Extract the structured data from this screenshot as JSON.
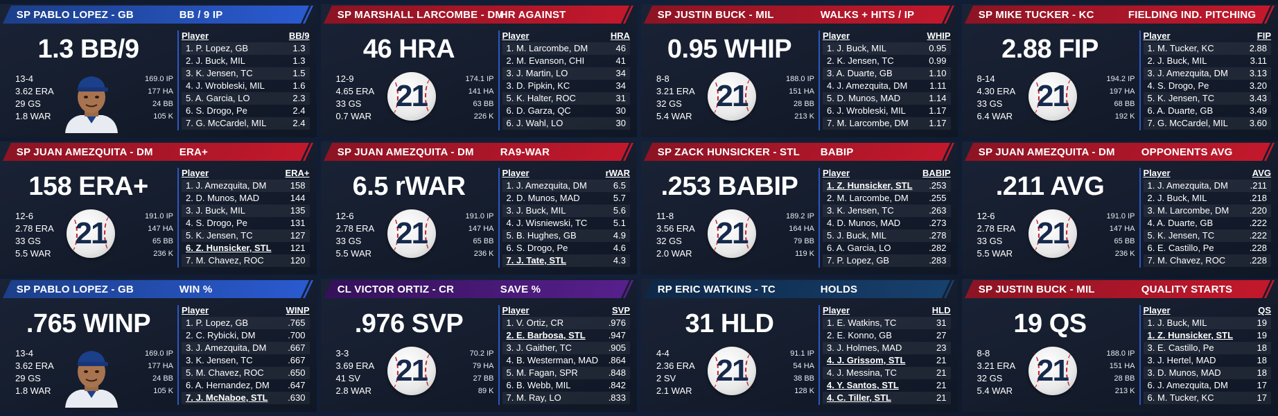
{
  "cards": [
    {
      "color": "blue",
      "player": "SP PABLO LOPEZ - GB",
      "category": "BB / 9 IP",
      "big": "1.3 BB/9",
      "lines": [
        "13-4",
        "3.62 ERA",
        "29 GS",
        "1.8 WAR"
      ],
      "mid": [
        "169.0 IP",
        "177 HA",
        "24 BB",
        "105 K"
      ],
      "logo": "avatar",
      "col": "BB/9",
      "rows": [
        [
          "1. P. Lopez, GB",
          "1.3"
        ],
        [
          "2. J. Buck, MIL",
          "1.3"
        ],
        [
          "3. K. Jensen, TC",
          "1.5"
        ],
        [
          "4. J. Wrobleski, MIL",
          "1.6"
        ],
        [
          "5. A. Garcia, LO",
          "2.3"
        ],
        [
          "6. S. Drogo, Pe",
          "2.4"
        ],
        [
          "7. G. McCardel, MIL",
          "2.4"
        ]
      ]
    },
    {
      "color": "red",
      "player": "SP MARSHALL LARCOMBE - DM",
      "category": "HR AGAINST",
      "big": "46 HRA",
      "lines": [
        "12-9",
        "4.65 ERA",
        "33 GS",
        "0.7 WAR"
      ],
      "mid": [
        "174.1 IP",
        "141 HA",
        "63 BB",
        "226 K"
      ],
      "logo": "21",
      "col": "HRA",
      "rows": [
        [
          "1. M. Larcombe, DM",
          "46"
        ],
        [
          "2. M. Evanson, CHI",
          "41"
        ],
        [
          "3. J. Martin, LO",
          "34"
        ],
        [
          "3. D. Pipkin, KC",
          "34"
        ],
        [
          "5. K. Halter, ROC",
          "31"
        ],
        [
          "6. D. Garza, QC",
          "30"
        ],
        [
          "6. J. Wahl, LO",
          "30"
        ]
      ]
    },
    {
      "color": "red",
      "player": "SP JUSTIN BUCK - MIL",
      "category": "WALKS + HITS / IP",
      "big": "0.95 WHIP",
      "lines": [
        "8-8",
        "3.21 ERA",
        "32 GS",
        "5.4 WAR"
      ],
      "mid": [
        "188.0 IP",
        "151 HA",
        "28 BB",
        "213 K"
      ],
      "logo": "21",
      "col": "WHIP",
      "rows": [
        [
          "1. J. Buck, MIL",
          "0.95"
        ],
        [
          "2. K. Jensen, TC",
          "0.99"
        ],
        [
          "3. A. Duarte, GB",
          "1.10"
        ],
        [
          "4. J. Amezquita, DM",
          "1.11"
        ],
        [
          "5. D. Munos, MAD",
          "1.14"
        ],
        [
          "6. J. Wrobleski, MIL",
          "1.17"
        ],
        [
          "7. M. Larcombe, DM",
          "1.17"
        ]
      ]
    },
    {
      "color": "red",
      "player": "SP MIKE TUCKER - KC",
      "category": "FIELDING IND. PITCHING",
      "big": "2.88 FIP",
      "lines": [
        "8-14",
        "4.30 ERA",
        "33 GS",
        "6.4 WAR"
      ],
      "mid": [
        "194.2 IP",
        "197 HA",
        "68 BB",
        "192 K"
      ],
      "logo": "21",
      "col": "FIP",
      "rows": [
        [
          "1. M. Tucker, KC",
          "2.88"
        ],
        [
          "2. J. Buck, MIL",
          "3.11"
        ],
        [
          "3. J. Amezquita, DM",
          "3.13"
        ],
        [
          "4. S. Drogo, Pe",
          "3.20"
        ],
        [
          "5. K. Jensen, TC",
          "3.43"
        ],
        [
          "6. A. Duarte, GB",
          "3.49"
        ],
        [
          "7. G. McCardel, MIL",
          "3.60"
        ]
      ]
    },
    {
      "color": "red",
      "player": "SP JUAN AMEZQUITA - DM",
      "category": "ERA+",
      "big": "158 ERA+",
      "lines": [
        "12-6",
        "2.78 ERA",
        "33 GS",
        "5.5 WAR"
      ],
      "mid": [
        "191.0 IP",
        "147 HA",
        "65 BB",
        "236 K"
      ],
      "logo": "21",
      "col": "ERA+",
      "rows": [
        [
          "1. J. Amezquita, DM",
          "158"
        ],
        [
          "2. D. Munos, MAD",
          "144"
        ],
        [
          "3. J. Buck, MIL",
          "135"
        ],
        [
          "4. S. Drogo, Pe",
          "131"
        ],
        [
          "5. K. Jensen, TC",
          "127"
        ],
        [
          "6. Z. Hunsicker, STL",
          "121",
          "u"
        ],
        [
          "7. M. Chavez, ROC",
          "120"
        ]
      ]
    },
    {
      "color": "red",
      "player": "SP JUAN AMEZQUITA - DM",
      "category": "RA9-WAR",
      "big": "6.5 rWAR",
      "lines": [
        "12-6",
        "2.78 ERA",
        "33 GS",
        "5.5 WAR"
      ],
      "mid": [
        "191.0 IP",
        "147 HA",
        "65 BB",
        "236 K"
      ],
      "logo": "21",
      "col": "rWAR",
      "rows": [
        [
          "1. J. Amezquita, DM",
          "6.5"
        ],
        [
          "2. D. Munos, MAD",
          "5.7"
        ],
        [
          "3. J. Buck, MIL",
          "5.6"
        ],
        [
          "4. J. Wisniewski, TC",
          "5.1"
        ],
        [
          "5. B. Hughes, GB",
          "4.9"
        ],
        [
          "6. S. Drogo, Pe",
          "4.6"
        ],
        [
          "7. J. Tate, STL",
          "4.3",
          "u"
        ]
      ]
    },
    {
      "color": "red",
      "player": "SP ZACK HUNSICKER - STL",
      "category": "BABIP",
      "big": ".253 BABIP",
      "lines": [
        "11-8",
        "3.56 ERA",
        "32 GS",
        "2.0 WAR"
      ],
      "mid": [
        "189.2 IP",
        "164 HA",
        "79 BB",
        "119 K"
      ],
      "logo": "21",
      "col": "BABIP",
      "rows": [
        [
          "1. Z. Hunsicker, STL",
          ".253",
          "u"
        ],
        [
          "2. M. Larcombe, DM",
          ".255"
        ],
        [
          "3. K. Jensen, TC",
          ".263"
        ],
        [
          "4. D. Munos, MAD",
          ".273"
        ],
        [
          "5. J. Buck, MIL",
          ".278"
        ],
        [
          "6. A. Garcia, LO",
          ".282"
        ],
        [
          "7. P. Lopez, GB",
          ".283"
        ]
      ]
    },
    {
      "color": "red",
      "player": "SP JUAN AMEZQUITA - DM",
      "category": "OPPONENTS AVG",
      "big": ".211 AVG",
      "lines": [
        "12-6",
        "2.78 ERA",
        "33 GS",
        "5.5 WAR"
      ],
      "mid": [
        "191.0 IP",
        "147 HA",
        "65 BB",
        "236 K"
      ],
      "logo": "21",
      "col": "AVG",
      "rows": [
        [
          "1. J. Amezquita, DM",
          ".211"
        ],
        [
          "2. J. Buck, MIL",
          ".218"
        ],
        [
          "3. M. Larcombe, DM",
          ".220"
        ],
        [
          "4. A. Duarte, GB",
          ".222"
        ],
        [
          "5. K. Jensen, TC",
          ".222"
        ],
        [
          "6. E. Castillo, Pe",
          ".228"
        ],
        [
          "7. M. Chavez, ROC",
          ".228"
        ]
      ]
    },
    {
      "color": "blue",
      "player": "SP PABLO LOPEZ - GB",
      "category": "WIN %",
      "big": ".765 WINP",
      "lines": [
        "13-4",
        "3.62 ERA",
        "29 GS",
        "1.8 WAR"
      ],
      "mid": [
        "169.0 IP",
        "177 HA",
        "24 BB",
        "105 K"
      ],
      "logo": "avatar",
      "col": "WINP",
      "rows": [
        [
          "1. P. Lopez, GB",
          ".765"
        ],
        [
          "2. C. Rybicki, DM",
          ".700"
        ],
        [
          "3. J. Amezquita, DM",
          ".667"
        ],
        [
          "3. K. Jensen, TC",
          ".667"
        ],
        [
          "5. M. Chavez, ROC",
          ".650"
        ],
        [
          "6. A. Hernandez, DM",
          ".647"
        ],
        [
          "7. J. McNaboe, STL",
          ".630",
          "u"
        ]
      ]
    },
    {
      "color": "purple",
      "player": "CL VICTOR ORTIZ - CR",
      "category": "SAVE %",
      "big": ".976 SVP",
      "lines": [
        "3-3",
        "3.69 ERA",
        "41 SV",
        "2.8 WAR"
      ],
      "mid": [
        "70.2 IP",
        "79 HA",
        "27 BB",
        "89 K"
      ],
      "logo": "21",
      "col": "SVP",
      "rows": [
        [
          "1. V. Ortiz, CR",
          ".976"
        ],
        [
          "2. E. Barbosa, STL",
          ".947",
          "u"
        ],
        [
          "3. J. Gaither, TC",
          ".905"
        ],
        [
          "4. B. Westerman, MAD",
          ".864"
        ],
        [
          "5. M. Fagan, SPR",
          ".848"
        ],
        [
          "6. B. Webb, MIL",
          ".842"
        ],
        [
          "7. M. Ray, LO",
          ".833"
        ]
      ]
    },
    {
      "color": "navy",
      "player": "RP ERIC WATKINS - TC",
      "category": "HOLDS",
      "big": "31 HLD",
      "lines": [
        "4-4",
        "2.36 ERA",
        "2 SV",
        "2.1 WAR"
      ],
      "mid": [
        "91.1 IP",
        "54 HA",
        "38 BB",
        "128 K"
      ],
      "logo": "21",
      "col": "HLD",
      "rows": [
        [
          "1. E. Watkins, TC",
          "31"
        ],
        [
          "2. E. Konno, GB",
          "27"
        ],
        [
          "3. J. Holmes, MAD",
          "23"
        ],
        [
          "4. J. Grissom, STL",
          "21",
          "u"
        ],
        [
          "4. J. Messina, TC",
          "21"
        ],
        [
          "4. Y. Santos, STL",
          "21",
          "u"
        ],
        [
          "4. C. Tiller, STL",
          "21",
          "u"
        ]
      ]
    },
    {
      "color": "red",
      "player": "SP JUSTIN BUCK - MIL",
      "category": "QUALITY STARTS",
      "big": "19 QS",
      "lines": [
        "8-8",
        "3.21 ERA",
        "32 GS",
        "5.4 WAR"
      ],
      "mid": [
        "188.0 IP",
        "151 HA",
        "28 BB",
        "213 K"
      ],
      "logo": "21",
      "col": "QS",
      "rows": [
        [
          "1. J. Buck, MIL",
          "19"
        ],
        [
          "1. Z. Hunsicker, STL",
          "19",
          "u"
        ],
        [
          "3. E. Castillo, Pe",
          "18"
        ],
        [
          "3. J. Hertel, MAD",
          "18"
        ],
        [
          "3. D. Munos, MAD",
          "18"
        ],
        [
          "6. J. Amezquita, DM",
          "17"
        ],
        [
          "6. M. Tucker, KC",
          "17"
        ]
      ]
    }
  ],
  "table_header_label": "Player"
}
